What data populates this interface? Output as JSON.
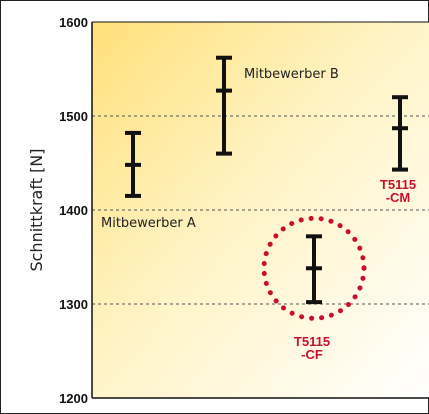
{
  "chart_data": {
    "type": "errorbar",
    "title": "",
    "xlabel": "",
    "ylabel": "Schnittkraft [N]",
    "ylim": [
      1200,
      1600
    ],
    "yticks": [
      1200,
      1300,
      1400,
      1500,
      1600
    ],
    "grid": "horizontal dashed",
    "series": [
      {
        "label": "Mitbewerber A",
        "min": 1415,
        "mean": 1448,
        "max": 1482
      },
      {
        "label": "Mitbewerber B",
        "min": 1460,
        "mean": 1527,
        "max": 1562
      },
      {
        "label": "T5115 -CF",
        "min": 1302,
        "mean": 1338,
        "max": 1372,
        "highlight": true
      },
      {
        "label": "T5115 -CM",
        "min": 1443,
        "mean": 1487,
        "max": 1520
      }
    ],
    "label_lines": {
      "T5115 -CF": [
        "T5115",
        "-CF"
      ],
      "T5115 -CM": [
        "T5115",
        "-CM"
      ]
    },
    "colors": {
      "bar": "#111111",
      "highlight": "#c8102e",
      "gradient_top": "#ffd966",
      "gradient_bottom": "#ffffff"
    }
  }
}
